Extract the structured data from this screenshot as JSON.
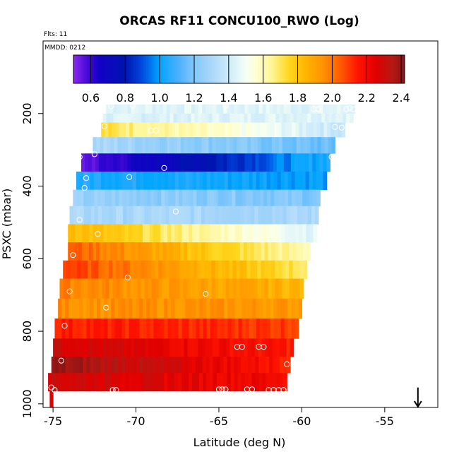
{
  "chart_data": {
    "type": "heatmap",
    "title": "ORCAS RF11 CONCU100_RWO (Log)",
    "subtitle_flts": "Flts: 11",
    "subtitle_mmdd": "MMDD: 0212",
    "xlabel": "Latitude (deg N)",
    "ylabel": "PSXC (mbar)",
    "xlim": [
      -75.6,
      -51.8
    ],
    "ylim": [
      1010,
      0
    ],
    "x_ticks": [
      -75,
      -70,
      -65,
      -60,
      -55
    ],
    "x_tick_labels": [
      "-75",
      "-70",
      "-65",
      "-60",
      "-55"
    ],
    "y_ticks": [
      200,
      400,
      600,
      800,
      1000
    ],
    "y_tick_labels": [
      "200",
      "400",
      "600",
      "800",
      "1000"
    ],
    "colorbar": {
      "min": 0.5,
      "max": 2.42,
      "ticks": [
        0.6,
        0.8,
        1.0,
        1.2,
        1.4,
        1.6,
        1.8,
        2.0,
        2.2,
        2.4
      ],
      "tick_labels": [
        "0.6",
        "0.8",
        "1.0",
        "1.2",
        "1.4",
        "1.6",
        "1.8",
        "2.0",
        "2.2",
        "2.4"
      ]
    },
    "bands": [
      {
        "p_top": 175,
        "p_bot": 200,
        "lat_start": -71.8,
        "lat_end": -56.8,
        "v_start": 1.45,
        "v_end": 1.45
      },
      {
        "p_top": 200,
        "p_bot": 225,
        "lat_start": -72.0,
        "lat_end": -56.9,
        "v_start": 1.43,
        "v_end": 1.46
      },
      {
        "p_top": 225,
        "p_bot": 265,
        "lat_start": -72.1,
        "lat_end": -57.4,
        "v_start": 1.72,
        "v_end": 1.38
      },
      {
        "p_top": 265,
        "p_bot": 310,
        "lat_start": -72.6,
        "lat_end": -58.0,
        "v_start": 1.3,
        "v_end": 1.15
      },
      {
        "p_top": 310,
        "p_bot": 360,
        "lat_start": -73.3,
        "lat_end": -58.3,
        "v_start": 0.55,
        "v_end": 1.05
      },
      {
        "p_top": 360,
        "p_bot": 410,
        "lat_start": -73.6,
        "lat_end": -58.5,
        "v_start": 1.05,
        "v_end": 1.0
      },
      {
        "p_top": 410,
        "p_bot": 455,
        "lat_start": -73.8,
        "lat_end": -58.9,
        "v_start": 1.25,
        "v_end": 1.2
      },
      {
        "p_top": 455,
        "p_bot": 505,
        "lat_start": -74.0,
        "lat_end": -59.0,
        "v_start": 1.3,
        "v_end": 1.3
      },
      {
        "p_top": 505,
        "p_bot": 555,
        "lat_start": -74.1,
        "lat_end": -59.1,
        "v_start": 1.85,
        "v_end": 1.45
      },
      {
        "p_top": 555,
        "p_bot": 605,
        "lat_start": -74.1,
        "lat_end": -59.5,
        "v_start": 2.05,
        "v_end": 1.6
      },
      {
        "p_top": 605,
        "p_bot": 655,
        "lat_start": -74.4,
        "lat_end": -59.7,
        "v_start": 2.1,
        "v_end": 1.7
      },
      {
        "p_top": 655,
        "p_bot": 710,
        "lat_start": -74.6,
        "lat_end": -59.9,
        "v_start": 1.98,
        "v_end": 1.85
      },
      {
        "p_top": 710,
        "p_bot": 765,
        "lat_start": -74.7,
        "lat_end": -60.0,
        "v_start": 1.95,
        "v_end": 1.93
      },
      {
        "p_top": 765,
        "p_bot": 820,
        "lat_start": -74.9,
        "lat_end": -60.2,
        "v_start": 2.15,
        "v_end": 2.1
      },
      {
        "p_top": 820,
        "p_bot": 870,
        "lat_start": -75.0,
        "lat_end": -60.5,
        "v_start": 2.3,
        "v_end": 2.15
      },
      {
        "p_top": 870,
        "p_bot": 915,
        "lat_start": -75.1,
        "lat_end": -60.7,
        "v_start": 2.4,
        "v_end": 2.15
      },
      {
        "p_top": 915,
        "p_bot": 965,
        "lat_start": -75.3,
        "lat_end": -60.9,
        "v_start": 2.3,
        "v_end": 2.2
      },
      {
        "p_top": 965,
        "p_bot": 1010,
        "lat_start": -75.2,
        "lat_end": -75.0,
        "v_start": 2.25,
        "v_end": 2.25
      }
    ],
    "points": [
      {
        "lat": -71.5,
        "p": 180
      },
      {
        "lat": -70.2,
        "p": 178
      },
      {
        "lat": -64.6,
        "p": 179
      },
      {
        "lat": -59.3,
        "p": 188
      },
      {
        "lat": -59.0,
        "p": 188
      },
      {
        "lat": -57.3,
        "p": 188
      },
      {
        "lat": -57.1,
        "p": 185
      },
      {
        "lat": -56.9,
        "p": 188
      },
      {
        "lat": -71.9,
        "p": 235
      },
      {
        "lat": -69.1,
        "p": 247
      },
      {
        "lat": -68.8,
        "p": 247
      },
      {
        "lat": -58.0,
        "p": 237
      },
      {
        "lat": -57.6,
        "p": 239
      },
      {
        "lat": -73.4,
        "p": 320
      },
      {
        "lat": -72.5,
        "p": 312
      },
      {
        "lat": -68.3,
        "p": 350
      },
      {
        "lat": -58.2,
        "p": 320
      },
      {
        "lat": -58.0,
        "p": 333
      },
      {
        "lat": -73.0,
        "p": 378
      },
      {
        "lat": -70.4,
        "p": 375
      },
      {
        "lat": -73.1,
        "p": 405
      },
      {
        "lat": -67.6,
        "p": 470
      },
      {
        "lat": -73.4,
        "p": 493
      },
      {
        "lat": -72.3,
        "p": 532
      },
      {
        "lat": -73.8,
        "p": 590
      },
      {
        "lat": -70.5,
        "p": 652
      },
      {
        "lat": -74.0,
        "p": 690
      },
      {
        "lat": -65.8,
        "p": 697
      },
      {
        "lat": -71.8,
        "p": 735
      },
      {
        "lat": -74.3,
        "p": 785
      },
      {
        "lat": -63.9,
        "p": 843
      },
      {
        "lat": -63.6,
        "p": 843
      },
      {
        "lat": -62.6,
        "p": 843
      },
      {
        "lat": -62.3,
        "p": 843
      },
      {
        "lat": -74.5,
        "p": 881
      },
      {
        "lat": -60.9,
        "p": 891
      },
      {
        "lat": -75.1,
        "p": 955
      },
      {
        "lat": -74.9,
        "p": 962
      },
      {
        "lat": -71.4,
        "p": 962
      },
      {
        "lat": -71.2,
        "p": 962
      },
      {
        "lat": -65.0,
        "p": 960
      },
      {
        "lat": -64.8,
        "p": 960
      },
      {
        "lat": -64.6,
        "p": 960
      },
      {
        "lat": -63.3,
        "p": 960
      },
      {
        "lat": -63.0,
        "p": 960
      },
      {
        "lat": -62.0,
        "p": 962
      },
      {
        "lat": -61.7,
        "p": 962
      },
      {
        "lat": -61.4,
        "p": 962
      },
      {
        "lat": -61.1,
        "p": 962
      }
    ],
    "arrow": {
      "lat": -53.0,
      "p_top": 955,
      "p_bot": 1008
    }
  }
}
